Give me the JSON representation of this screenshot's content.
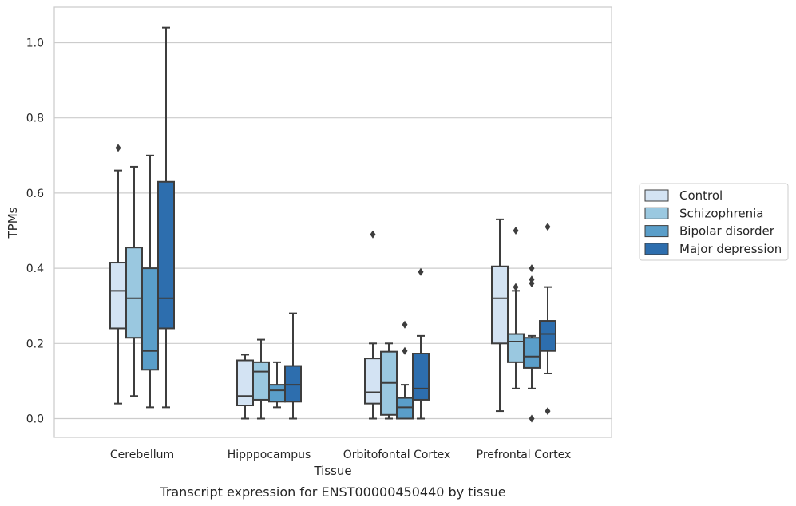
{
  "caption": "Transcript expression for ENST00000450440 by tissue",
  "chart_data": {
    "type": "box",
    "xlabel": "Tissue",
    "ylabel": "TPMs",
    "ylim": [
      -0.05,
      1.09
    ],
    "yticks": [
      "0.0",
      "0.2",
      "0.4",
      "0.6",
      "0.8",
      "1.0"
    ],
    "grid": true,
    "legend_position": "right",
    "categories": [
      "Cerebellum",
      "Hipppocampus",
      "Orbitofontal Cortex",
      "Prefrontal Cortex"
    ],
    "series": [
      {
        "name": "Control",
        "color": "#d3e3f3",
        "boxes": [
          {
            "whislo": 0.04,
            "q1": 0.24,
            "med": 0.34,
            "q3": 0.415,
            "whishi": 0.66,
            "fliers": [
              0.72
            ]
          },
          {
            "whislo": 0.0,
            "q1": 0.035,
            "med": 0.06,
            "q3": 0.155,
            "whishi": 0.17,
            "fliers": []
          },
          {
            "whislo": 0.0,
            "q1": 0.04,
            "med": 0.07,
            "q3": 0.16,
            "whishi": 0.2,
            "fliers": [
              0.49
            ]
          },
          {
            "whislo": 0.02,
            "q1": 0.2,
            "med": 0.32,
            "q3": 0.405,
            "whishi": 0.53,
            "fliers": []
          }
        ]
      },
      {
        "name": "Schizophrenia",
        "color": "#9ac8e0",
        "boxes": [
          {
            "whislo": 0.06,
            "q1": 0.215,
            "med": 0.32,
            "q3": 0.455,
            "whishi": 0.67,
            "fliers": []
          },
          {
            "whislo": 0.0,
            "q1": 0.05,
            "med": 0.125,
            "q3": 0.15,
            "whishi": 0.21,
            "fliers": []
          },
          {
            "whislo": 0.0,
            "q1": 0.01,
            "med": 0.095,
            "q3": 0.178,
            "whishi": 0.2,
            "fliers": []
          },
          {
            "whislo": 0.08,
            "q1": 0.15,
            "med": 0.205,
            "q3": 0.225,
            "whishi": 0.34,
            "fliers": [
              0.35,
              0.5
            ]
          }
        ]
      },
      {
        "name": "Bipolar disorder",
        "color": "#5a9ec9",
        "boxes": [
          {
            "whislo": 0.03,
            "q1": 0.13,
            "med": 0.18,
            "q3": 0.4,
            "whishi": 0.7,
            "fliers": []
          },
          {
            "whislo": 0.03,
            "q1": 0.045,
            "med": 0.075,
            "q3": 0.09,
            "whishi": 0.15,
            "fliers": []
          },
          {
            "whislo": 0.0,
            "q1": 0.0,
            "med": 0.03,
            "q3": 0.055,
            "whishi": 0.09,
            "fliers": [
              0.18,
              0.25
            ]
          },
          {
            "whislo": 0.08,
            "q1": 0.135,
            "med": 0.165,
            "q3": 0.215,
            "whishi": 0.22,
            "fliers": [
              0.0,
              0.36,
              0.37,
              0.4
            ]
          }
        ]
      },
      {
        "name": "Major depression",
        "color": "#2d6eae",
        "boxes": [
          {
            "whislo": 0.03,
            "q1": 0.24,
            "med": 0.32,
            "q3": 0.63,
            "whishi": 1.04,
            "fliers": []
          },
          {
            "whislo": 0.0,
            "q1": 0.045,
            "med": 0.09,
            "q3": 0.14,
            "whishi": 0.28,
            "fliers": []
          },
          {
            "whislo": 0.0,
            "q1": 0.05,
            "med": 0.08,
            "q3": 0.173,
            "whishi": 0.22,
            "fliers": [
              0.39
            ]
          },
          {
            "whislo": 0.12,
            "q1": 0.18,
            "med": 0.225,
            "q3": 0.26,
            "whishi": 0.35,
            "fliers": [
              0.02,
              0.51
            ]
          }
        ]
      }
    ]
  }
}
